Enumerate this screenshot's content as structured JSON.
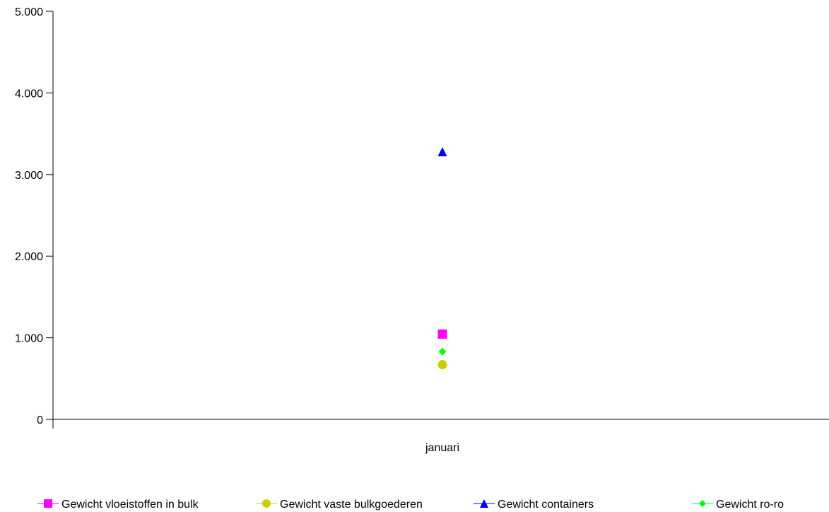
{
  "chart_data": {
    "type": "scatter",
    "categories": [
      "januari"
    ],
    "ylim": [
      0,
      5000
    ],
    "yticks": [
      0,
      1000,
      2000,
      3000,
      4000,
      5000
    ],
    "ytick_labels": [
      "0",
      "1.000",
      "2.000",
      "3.000",
      "4.000",
      "5.000"
    ],
    "xlabel": "",
    "ylabel": "",
    "grid": false,
    "legend_position": "bottom",
    "series": [
      {
        "name": "Gewicht vloeistoffen in bulk",
        "values": [
          1045
        ],
        "color": "#ff00ff",
        "marker": "square"
      },
      {
        "name": "Gewicht vaste bulkgoederen",
        "values": [
          670
        ],
        "color": "#cccc00",
        "marker": "circle"
      },
      {
        "name": "Gewicht containers",
        "values": [
          3280
        ],
        "color": "#0000ff",
        "marker": "triangle"
      },
      {
        "name": "Gewicht ro-ro",
        "values": [
          830
        ],
        "color": "#00ff00",
        "marker": "diamond"
      }
    ]
  }
}
